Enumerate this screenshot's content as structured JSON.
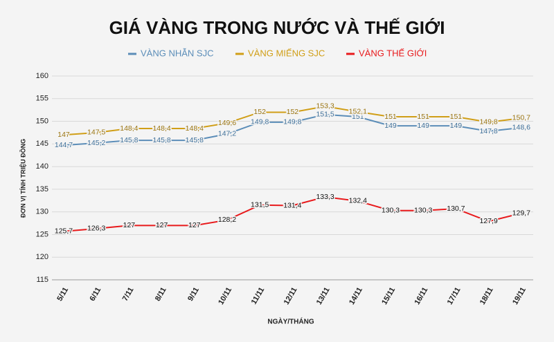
{
  "chart_data": {
    "type": "line",
    "title": "GIÁ VÀNG TRONG NƯỚC VÀ THẾ GIỚI",
    "x_label": "NGÀY/THÁNG",
    "y_label": "ĐƠN VỊ TÍNH TRIỆU ĐỒNG",
    "categories": [
      "5/11",
      "6/11",
      "7/11",
      "8/11",
      "9/11",
      "10/11",
      "11/11",
      "12/11",
      "13/11",
      "14/11",
      "15/11",
      "16/11",
      "17/11",
      "18/11",
      "19/11"
    ],
    "series": [
      {
        "name": "VÀNG NHẪN SJC",
        "color": "#5b8db8",
        "values": [
          144.7,
          145.2,
          145.8,
          145.8,
          145.8,
          147.2,
          149.8,
          149.8,
          151.5,
          151,
          149,
          149,
          149,
          147.8,
          148.6
        ],
        "value_labels": [
          "144,7",
          "145,2",
          "145,8",
          "145,8",
          "145,8",
          "147,2",
          "149,8",
          "149,8",
          "151,5",
          "151",
          "149",
          "149",
          "149",
          "147,8",
          "148,6"
        ]
      },
      {
        "name": "VÀNG MIẾNG SJC",
        "color": "#d09e16",
        "values": [
          147,
          147.5,
          148.4,
          148.4,
          148.4,
          149.6,
          152,
          152,
          153.3,
          152.1,
          151,
          151,
          151,
          149.8,
          150.7
        ],
        "value_labels": [
          "147",
          "147,5",
          "148,4",
          "148,4",
          "148,4",
          "149,6",
          "152",
          "152",
          "153,3",
          "152,1",
          "151",
          "151",
          "151",
          "149,8",
          "150,7"
        ]
      },
      {
        "name": "VÀNG THẾ GIỚI",
        "color": "#e8191b",
        "values": [
          125.7,
          126.3,
          127,
          127,
          127,
          128.2,
          131.5,
          131.4,
          133.3,
          132.4,
          130.3,
          130.3,
          130.7,
          127.9,
          129.7
        ],
        "value_labels": [
          "125,7",
          "126,3",
          "127",
          "127",
          "127",
          "128,2",
          "131,5",
          "131,4",
          "133,3",
          "132,4",
          "130,3",
          "130,3",
          "130,7",
          "127,9",
          "129,7"
        ]
      }
    ],
    "ylim": [
      115,
      160
    ],
    "yticks": [
      115,
      120,
      125,
      130,
      135,
      140,
      145,
      150,
      155,
      160
    ],
    "grid": true
  }
}
